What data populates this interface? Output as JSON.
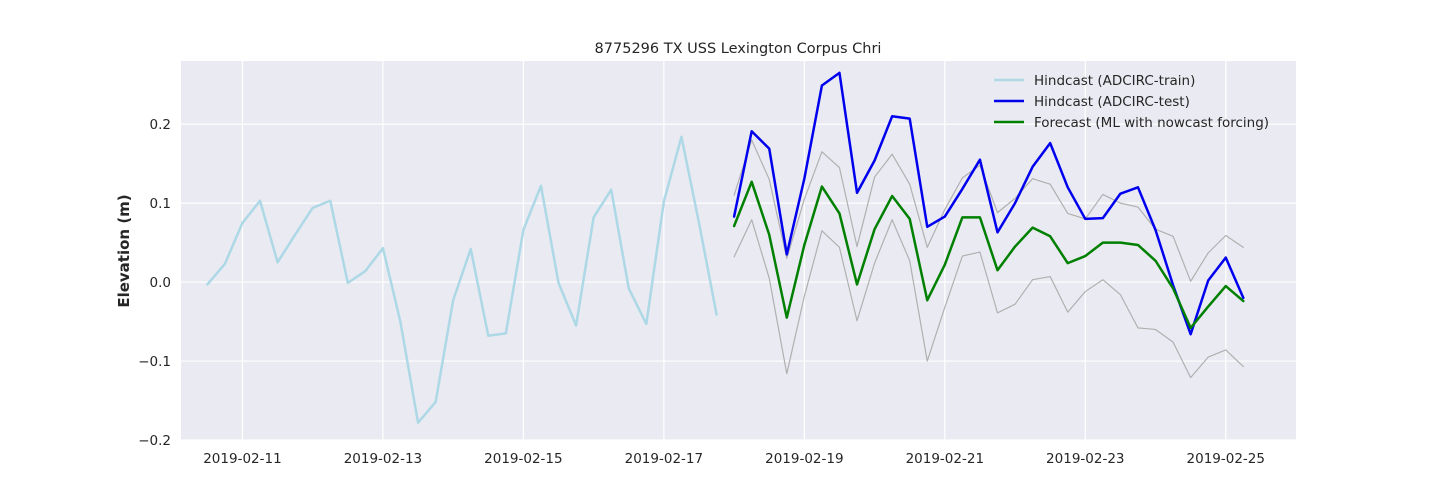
{
  "chart_data": {
    "type": "line",
    "title": "8775296 TX USS Lexington Corpus Chri",
    "xlabel": "",
    "ylabel": "Elevation (m)",
    "x_type": "date",
    "xlim": [
      "2019-02-10 03:00",
      "2019-02-26 00:00"
    ],
    "ylim": [
      -0.2,
      0.28
    ],
    "x_ticks": [
      "2019-02-11",
      "2019-02-13",
      "2019-02-15",
      "2019-02-17",
      "2019-02-19",
      "2019-02-21",
      "2019-02-23",
      "2019-02-25"
    ],
    "y_ticks": [
      -0.2,
      -0.1,
      0.0,
      0.1,
      0.2
    ],
    "y_tick_labels": [
      "−0.2",
      "−0.1",
      "0.0",
      "0.1",
      "0.2"
    ],
    "grid": true,
    "background": "#eaeaf2",
    "legend_position": "top-right",
    "series": [
      {
        "name": "Hindcast (ADCIRC-train)",
        "color": "#add8e6",
        "width": 2.5,
        "in_legend": true,
        "x": [
          "2019-02-10 12:00",
          "2019-02-10 18:00",
          "2019-02-11 00:00",
          "2019-02-11 06:00",
          "2019-02-11 12:00",
          "2019-02-11 18:00",
          "2019-02-12 00:00",
          "2019-02-12 06:00",
          "2019-02-12 12:00",
          "2019-02-12 18:00",
          "2019-02-13 00:00",
          "2019-02-13 06:00",
          "2019-02-13 12:00",
          "2019-02-13 18:00",
          "2019-02-14 00:00",
          "2019-02-14 06:00",
          "2019-02-14 12:00",
          "2019-02-14 18:00",
          "2019-02-15 00:00",
          "2019-02-15 06:00",
          "2019-02-15 12:00",
          "2019-02-15 18:00",
          "2019-02-16 00:00",
          "2019-02-16 06:00",
          "2019-02-16 12:00",
          "2019-02-16 18:00",
          "2019-02-17 00:00",
          "2019-02-17 06:00",
          "2019-02-17 12:00",
          "2019-02-17 18:00"
        ],
        "y": [
          -0.003,
          0.023,
          0.075,
          0.103,
          0.025,
          0.06,
          0.094,
          0.103,
          -0.001,
          0.014,
          0.043,
          -0.051,
          -0.178,
          -0.152,
          -0.023,
          0.042,
          -0.068,
          -0.065,
          0.066,
          0.122,
          -0.001,
          -0.055,
          0.082,
          0.117,
          -0.008,
          -0.053,
          0.102,
          0.184,
          0.075,
          -0.041
        ]
      },
      {
        "name": "",
        "color": "#b0b0b0",
        "width": 1.2,
        "in_legend": false,
        "x": [
          "2019-02-18 00:00",
          "2019-02-18 06:00",
          "2019-02-18 12:00",
          "2019-02-18 18:00",
          "2019-02-19 00:00",
          "2019-02-19 06:00",
          "2019-02-19 12:00",
          "2019-02-19 18:00",
          "2019-02-20 00:00",
          "2019-02-20 06:00",
          "2019-02-20 12:00",
          "2019-02-20 18:00",
          "2019-02-21 00:00",
          "2019-02-21 06:00",
          "2019-02-21 12:00",
          "2019-02-21 18:00",
          "2019-02-22 00:00",
          "2019-02-22 06:00",
          "2019-02-22 12:00",
          "2019-02-22 18:00",
          "2019-02-23 00:00",
          "2019-02-23 06:00",
          "2019-02-23 12:00",
          "2019-02-23 18:00",
          "2019-02-24 00:00",
          "2019-02-24 06:00",
          "2019-02-24 12:00",
          "2019-02-24 18:00",
          "2019-02-25 00:00",
          "2019-02-25 06:00"
        ],
        "y": [
          0.11,
          0.18,
          0.13,
          0.03,
          0.105,
          0.165,
          0.145,
          0.045,
          0.133,
          0.162,
          0.124,
          0.044,
          0.092,
          0.132,
          0.148,
          0.088,
          0.106,
          0.131,
          0.124,
          0.087,
          0.08,
          0.111,
          0.1,
          0.095,
          0.067,
          0.058,
          0.001,
          0.037,
          0.059,
          0.044
        ]
      },
      {
        "name": "",
        "color": "#b0b0b0",
        "width": 1.2,
        "in_legend": false,
        "x": [
          "2019-02-18 00:00",
          "2019-02-18 06:00",
          "2019-02-18 12:00",
          "2019-02-18 18:00",
          "2019-02-19 00:00",
          "2019-02-19 06:00",
          "2019-02-19 12:00",
          "2019-02-19 18:00",
          "2019-02-20 00:00",
          "2019-02-20 06:00",
          "2019-02-20 12:00",
          "2019-02-20 18:00",
          "2019-02-21 00:00",
          "2019-02-21 06:00",
          "2019-02-21 12:00",
          "2019-02-21 18:00",
          "2019-02-22 00:00",
          "2019-02-22 06:00",
          "2019-02-22 12:00",
          "2019-02-22 18:00",
          "2019-02-23 00:00",
          "2019-02-23 06:00",
          "2019-02-23 12:00",
          "2019-02-23 18:00",
          "2019-02-24 00:00",
          "2019-02-24 06:00",
          "2019-02-24 12:00",
          "2019-02-24 18:00",
          "2019-02-25 00:00",
          "2019-02-25 06:00"
        ],
        "y": [
          0.032,
          0.079,
          0.005,
          -0.116,
          -0.018,
          0.065,
          0.044,
          -0.049,
          0.024,
          0.079,
          0.027,
          -0.1,
          -0.032,
          0.033,
          0.038,
          -0.039,
          -0.028,
          0.003,
          0.007,
          -0.038,
          -0.012,
          0.003,
          -0.016,
          -0.058,
          -0.06,
          -0.076,
          -0.121,
          -0.095,
          -0.086,
          -0.107
        ]
      },
      {
        "name": "Hindcast (ADCIRC-test)",
        "color": "#0000ee",
        "width": 2.5,
        "in_legend": true,
        "x": [
          "2019-02-18 00:00",
          "2019-02-18 06:00",
          "2019-02-18 12:00",
          "2019-02-18 18:00",
          "2019-02-19 00:00",
          "2019-02-19 06:00",
          "2019-02-19 12:00",
          "2019-02-19 18:00",
          "2019-02-20 00:00",
          "2019-02-20 06:00",
          "2019-02-20 12:00",
          "2019-02-20 18:00",
          "2019-02-21 00:00",
          "2019-02-21 06:00",
          "2019-02-21 12:00",
          "2019-02-21 18:00",
          "2019-02-22 00:00",
          "2019-02-22 06:00",
          "2019-02-22 12:00",
          "2019-02-22 18:00",
          "2019-02-23 00:00",
          "2019-02-23 06:00",
          "2019-02-23 12:00",
          "2019-02-23 18:00",
          "2019-02-24 00:00",
          "2019-02-24 06:00",
          "2019-02-24 12:00",
          "2019-02-24 18:00",
          "2019-02-25 00:00",
          "2019-02-25 06:00"
        ],
        "y": [
          0.083,
          0.191,
          0.169,
          0.035,
          0.131,
          0.249,
          0.265,
          0.113,
          0.154,
          0.21,
          0.207,
          0.07,
          0.083,
          0.118,
          0.155,
          0.063,
          0.1,
          0.146,
          0.176,
          0.12,
          0.08,
          0.081,
          0.112,
          0.12,
          0.066,
          -0.004,
          -0.066,
          0.002,
          0.031,
          -0.02
        ]
      },
      {
        "name": "Forecast (ML with nowcast forcing)",
        "color": "#008000",
        "width": 2.5,
        "in_legend": true,
        "x": [
          "2019-02-18 00:00",
          "2019-02-18 06:00",
          "2019-02-18 12:00",
          "2019-02-18 18:00",
          "2019-02-19 00:00",
          "2019-02-19 06:00",
          "2019-02-19 12:00",
          "2019-02-19 18:00",
          "2019-02-20 00:00",
          "2019-02-20 06:00",
          "2019-02-20 12:00",
          "2019-02-20 18:00",
          "2019-02-21 00:00",
          "2019-02-21 06:00",
          "2019-02-21 12:00",
          "2019-02-21 18:00",
          "2019-02-22 00:00",
          "2019-02-22 06:00",
          "2019-02-22 12:00",
          "2019-02-22 18:00",
          "2019-02-23 00:00",
          "2019-02-23 06:00",
          "2019-02-23 12:00",
          "2019-02-23 18:00",
          "2019-02-24 00:00",
          "2019-02-24 06:00",
          "2019-02-24 12:00",
          "2019-02-24 18:00",
          "2019-02-25 00:00",
          "2019-02-25 06:00"
        ],
        "y": [
          0.071,
          0.127,
          0.06,
          -0.045,
          0.047,
          0.121,
          0.087,
          -0.003,
          0.067,
          0.109,
          0.08,
          -0.023,
          0.022,
          0.082,
          0.082,
          0.015,
          0.045,
          0.069,
          0.058,
          0.024,
          0.033,
          0.05,
          0.05,
          0.047,
          0.027,
          -0.008,
          -0.058,
          -0.031,
          -0.005,
          -0.024
        ]
      }
    ]
  }
}
